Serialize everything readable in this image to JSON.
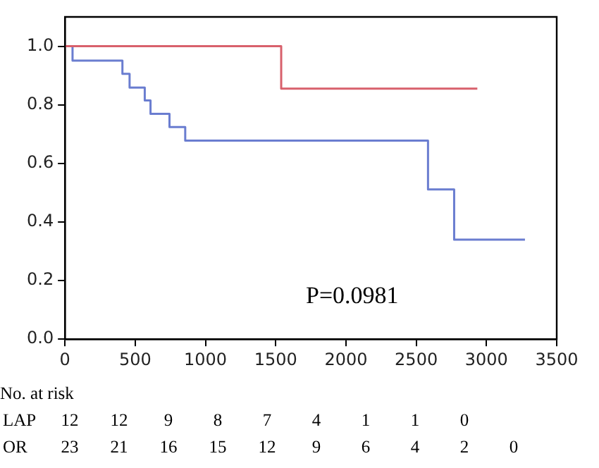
{
  "chart_data": {
    "type": "step",
    "series": [
      {
        "color": "#d8606c",
        "x": [
          0,
          1539,
          2935
        ],
        "values": [
          1.0,
          0.855,
          0.855
        ]
      },
      {
        "color": "#6a7dd0",
        "x": [
          0,
          54,
          409,
          460,
          568,
          609,
          744,
          856,
          2584,
          2770,
          3274
        ],
        "values": [
          1.0,
          0.951,
          0.906,
          0.859,
          0.815,
          0.769,
          0.724,
          0.678,
          0.511,
          0.34,
          0.34
        ]
      }
    ],
    "xlim": [
      0,
      3500
    ],
    "xticks": [
      0,
      500,
      1000,
      1500,
      2000,
      2500,
      3000,
      3500
    ],
    "ylim": [
      0,
      1.1
    ],
    "yticks": [
      {
        "value": 0,
        "label": "0.0"
      },
      {
        "value": 0.2,
        "label": "0.2"
      },
      {
        "value": 0.4,
        "label": "0.4"
      },
      {
        "value": 0.6,
        "label": "0.6"
      },
      {
        "value": 0.8,
        "label": "0.8"
      },
      {
        "value": 1,
        "label": "1.0"
      }
    ],
    "grid": false,
    "legend": false,
    "marker": "none",
    "line_style": "solid",
    "annotations": [
      "P=0.0981",
      "No. at risk",
      "LAP 12 12 9 8 7 4 1 1 0",
      "OR 23 21 16 15 12 9 6 4 2 0"
    ]
  }
}
